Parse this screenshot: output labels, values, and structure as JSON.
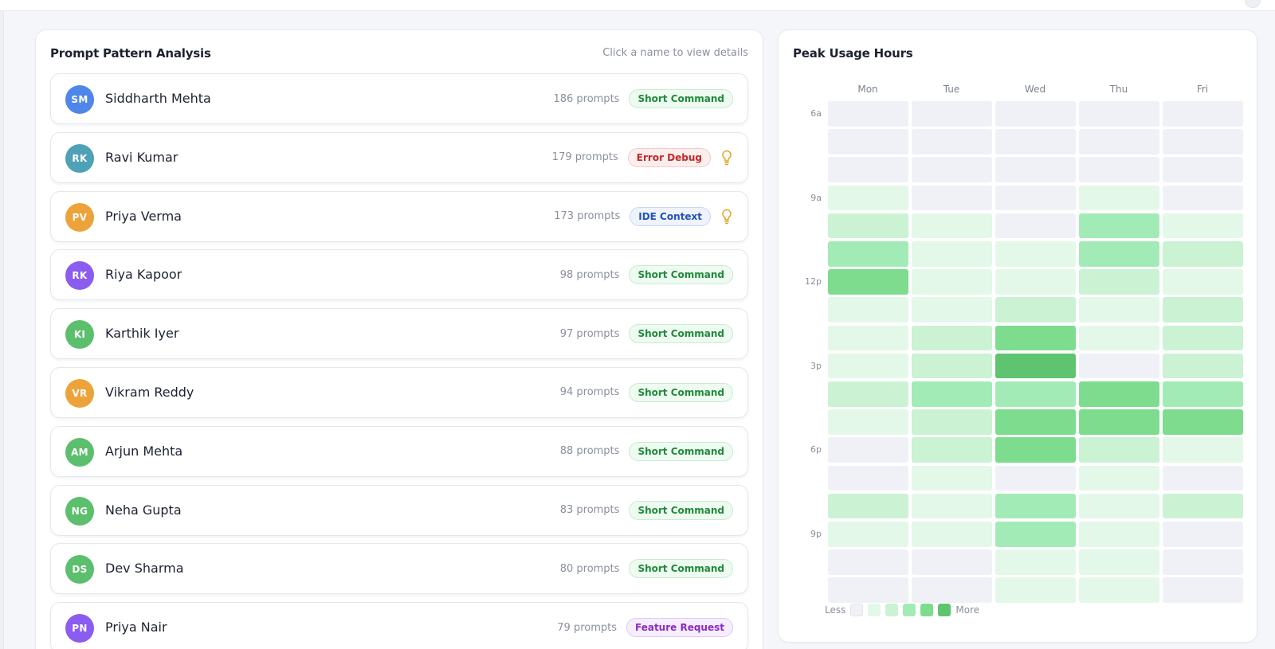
{
  "prompt_panel": {
    "title": "Prompt Pattern Analysis",
    "hint": "Click a name to view details",
    "users": [
      {
        "initials": "SM",
        "name": "Siddharth Mehta",
        "prompts": "186 prompts",
        "tag": "Short Command",
        "avatar_color": "#4f86ea",
        "tag_style": "green",
        "insight": false
      },
      {
        "initials": "RK",
        "name": "Ravi Kumar",
        "prompts": "179 prompts",
        "tag": "Error Debug",
        "avatar_color": "#4ea1b6",
        "tag_style": "red",
        "insight": true
      },
      {
        "initials": "PV",
        "name": "Priya Verma",
        "prompts": "173 prompts",
        "tag": "IDE Context",
        "avatar_color": "#eda33a",
        "tag_style": "blue",
        "insight": true
      },
      {
        "initials": "RK",
        "name": "Riya Kapoor",
        "prompts": "98 prompts",
        "tag": "Short Command",
        "avatar_color": "#8b5cf0",
        "tag_style": "green",
        "insight": false
      },
      {
        "initials": "KI",
        "name": "Karthik Iyer",
        "prompts": "97 prompts",
        "tag": "Short Command",
        "avatar_color": "#5bbf6d",
        "tag_style": "green",
        "insight": false
      },
      {
        "initials": "VR",
        "name": "Vikram Reddy",
        "prompts": "94 prompts",
        "tag": "Short Command",
        "avatar_color": "#eda33a",
        "tag_style": "green",
        "insight": false
      },
      {
        "initials": "AM",
        "name": "Arjun Mehta",
        "prompts": "88 prompts",
        "tag": "Short Command",
        "avatar_color": "#5bbf6d",
        "tag_style": "green",
        "insight": false
      },
      {
        "initials": "NG",
        "name": "Neha Gupta",
        "prompts": "83 prompts",
        "tag": "Short Command",
        "avatar_color": "#5bbf6d",
        "tag_style": "green",
        "insight": false
      },
      {
        "initials": "DS",
        "name": "Dev Sharma",
        "prompts": "80 prompts",
        "tag": "Short Command",
        "avatar_color": "#5bbf6d",
        "tag_style": "green",
        "insight": false
      },
      {
        "initials": "PN",
        "name": "Priya Nair",
        "prompts": "79 prompts",
        "tag": "Feature Request",
        "avatar_color": "#8b5cf0",
        "tag_style": "purple",
        "insight": false
      }
    ]
  },
  "tag_styles": {
    "green": {
      "text": "#1f8a3a",
      "bg": "#eefbf1",
      "border": "#c8ecd1"
    },
    "red": {
      "text": "#c62828",
      "bg": "#fdeeee",
      "border": "#f6caca"
    },
    "blue": {
      "text": "#2452b8",
      "bg": "#eef3fd",
      "border": "#c9d7f5"
    },
    "purple": {
      "text": "#8a2bc4",
      "bg": "#f6eefd",
      "border": "#e2cbf6"
    }
  },
  "insight_icon": {
    "name": "lightbulb-icon",
    "color": "#e0a21c"
  },
  "heatmap": {
    "title": "Peak Usage Hours",
    "days": [
      "Mon",
      "Tue",
      "Wed",
      "Thu",
      "Fri"
    ],
    "hour_labels": [
      "6a",
      "",
      "",
      "9a",
      "",
      "",
      "12p",
      "",
      "",
      "3p",
      "",
      "",
      "6p",
      "",
      "",
      "9p",
      "",
      ""
    ],
    "levels": [
      [
        0,
        0,
        0,
        0,
        0
      ],
      [
        0,
        0,
        0,
        0,
        0
      ],
      [
        0,
        0,
        0,
        0,
        0
      ],
      [
        1,
        0,
        0,
        1,
        0
      ],
      [
        2,
        1,
        0,
        3,
        1
      ],
      [
        3,
        1,
        1,
        3,
        2
      ],
      [
        4,
        1,
        1,
        2,
        1
      ],
      [
        1,
        1,
        2,
        1,
        2
      ],
      [
        1,
        2,
        4,
        1,
        2
      ],
      [
        1,
        2,
        5,
        0,
        2
      ],
      [
        2,
        3,
        3,
        4,
        3
      ],
      [
        1,
        2,
        4,
        4,
        4
      ],
      [
        0,
        2,
        4,
        2,
        1
      ],
      [
        0,
        1,
        0,
        1,
        0
      ],
      [
        2,
        1,
        3,
        1,
        2
      ],
      [
        1,
        1,
        3,
        1,
        0
      ],
      [
        0,
        0,
        1,
        1,
        0
      ],
      [
        0,
        0,
        1,
        1,
        0
      ]
    ],
    "palette": [
      "#eff1f6",
      "#e3f8e8",
      "#caf2d3",
      "#a3ebb6",
      "#7ddc8e",
      "#5fc46f"
    ],
    "legend_less": "Less",
    "legend_more": "More"
  }
}
